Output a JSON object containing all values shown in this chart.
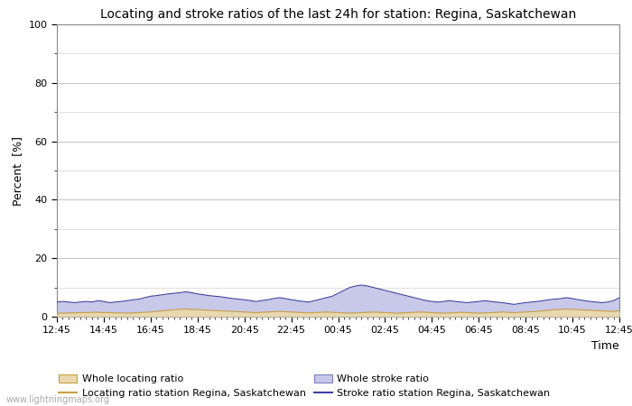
{
  "title": "Locating and stroke ratios of the last 24h for station: Regina, Saskatchewan",
  "xlabel": "Time",
  "ylabel": "Percent  [%]",
  "ylim": [
    0,
    100
  ],
  "yticks_major": [
    0,
    20,
    40,
    60,
    80,
    100
  ],
  "yticks_minor": [
    10,
    30,
    50,
    70,
    90
  ],
  "x_labels": [
    "12:45",
    "14:45",
    "16:45",
    "18:45",
    "20:45",
    "22:45",
    "00:45",
    "02:45",
    "04:45",
    "06:45",
    "08:45",
    "10:45",
    "12:45"
  ],
  "background_color": "#ffffff",
  "plot_bg_color": "#ffffff",
  "grid_color": "#c8c8c8",
  "whole_locating_fill_color": "#e8d8b0",
  "whole_locating_line_color": "#c8a040",
  "whole_stroke_fill_color": "#c8c8e8",
  "whole_stroke_line_color": "#8080c0",
  "station_locating_line_color": "#c8a040",
  "station_stroke_line_color": "#4040a0",
  "watermark": "www.lightningmaps.org",
  "n_points": 97,
  "whole_locating_base": [
    1.2,
    1.2,
    1.3,
    1.3,
    1.4,
    1.4,
    1.5,
    1.5,
    1.4,
    1.4,
    1.3,
    1.3,
    1.2,
    1.3,
    1.4,
    1.5,
    1.6,
    1.8,
    2.0,
    2.2,
    2.4,
    2.5,
    2.6,
    2.5,
    2.4,
    2.3,
    2.2,
    2.1,
    2.0,
    1.9,
    1.8,
    1.7,
    1.6,
    1.5,
    1.4,
    1.5,
    1.6,
    1.7,
    1.8,
    1.7,
    1.6,
    1.5,
    1.4,
    1.3,
    1.4,
    1.5,
    1.6,
    1.5,
    1.4,
    1.3,
    1.2,
    1.3,
    1.4,
    1.5,
    1.6,
    1.5,
    1.4,
    1.3,
    1.2,
    1.3,
    1.4,
    1.5,
    1.6,
    1.5,
    1.4,
    1.3,
    1.2,
    1.3,
    1.4,
    1.5,
    1.4,
    1.3,
    1.2,
    1.3,
    1.4,
    1.5,
    1.6,
    1.5,
    1.4,
    1.5,
    1.6,
    1.7,
    1.8,
    2.0,
    2.2,
    2.4,
    2.5,
    2.6,
    2.5,
    2.4,
    2.3,
    2.2,
    2.1,
    2.0,
    1.9,
    1.8,
    2.0
  ],
  "whole_stroke_base": [
    5.0,
    5.2,
    5.0,
    4.8,
    5.0,
    5.2,
    5.0,
    5.5,
    5.2,
    4.8,
    5.0,
    5.2,
    5.5,
    5.8,
    6.0,
    6.5,
    7.0,
    7.2,
    7.5,
    7.8,
    8.0,
    8.2,
    8.5,
    8.2,
    7.8,
    7.5,
    7.2,
    7.0,
    6.8,
    6.5,
    6.2,
    6.0,
    5.8,
    5.5,
    5.2,
    5.5,
    5.8,
    6.2,
    6.5,
    6.2,
    5.8,
    5.5,
    5.2,
    5.0,
    5.5,
    6.0,
    6.5,
    7.0,
    8.0,
    9.0,
    10.0,
    10.5,
    10.8,
    10.5,
    10.0,
    9.5,
    9.0,
    8.5,
    8.0,
    7.5,
    7.0,
    6.5,
    6.0,
    5.5,
    5.2,
    5.0,
    5.2,
    5.5,
    5.2,
    5.0,
    4.8,
    5.0,
    5.2,
    5.5,
    5.2,
    5.0,
    4.8,
    4.5,
    4.2,
    4.5,
    4.8,
    5.0,
    5.2,
    5.5,
    5.8,
    6.0,
    6.2,
    6.5,
    6.2,
    5.8,
    5.5,
    5.2,
    5.0,
    4.8,
    5.0,
    5.5,
    6.5
  ]
}
